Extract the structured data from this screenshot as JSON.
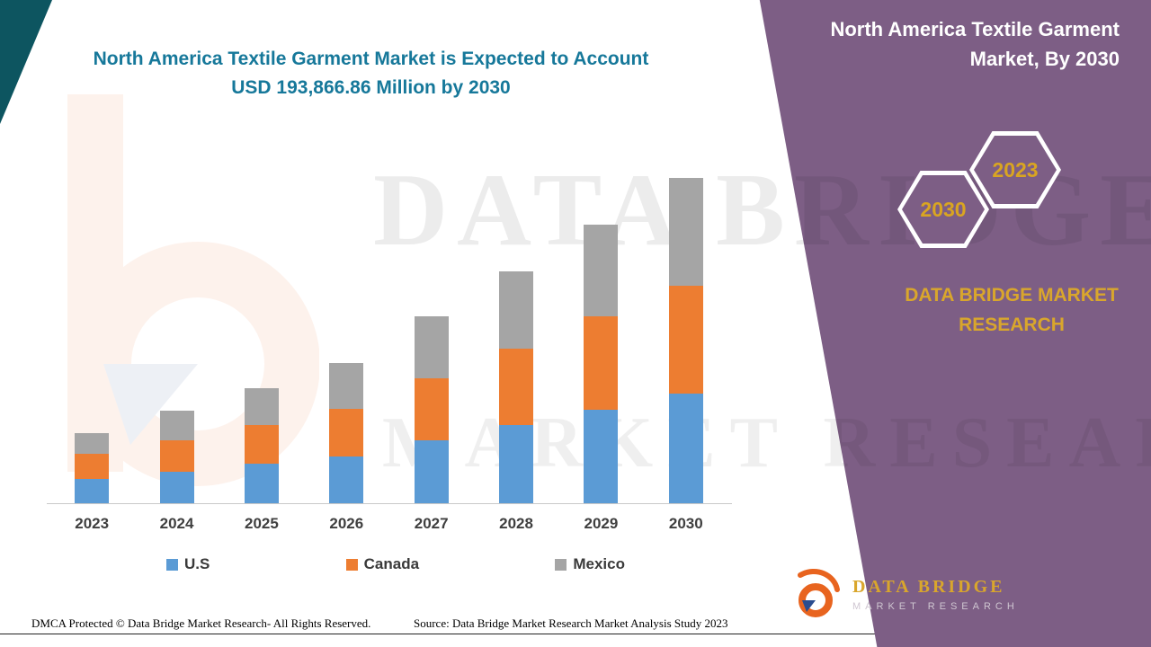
{
  "left_title": {
    "line1": "North America Textile Garment Market is Expected to Account",
    "line2": "USD 193,866.86 Million by 2030"
  },
  "panel": {
    "title_line1": "North America Textile Garment",
    "title_line2": "Market, By 2030",
    "hexagon_back_label": "2030",
    "hexagon_front_label": "2023",
    "brand_line1": "DATA BRIDGE MARKET",
    "brand_line2": "RESEARCH",
    "panel_color": "#7d5e85",
    "accent_gold": "#d9a62c"
  },
  "chart_data": {
    "type": "bar",
    "stacked": true,
    "title": "North America Textile Garment Market is Expected to Account USD 193,866.86 Million by 2030",
    "unit": "USD Million",
    "categories": [
      "2023",
      "2024",
      "2025",
      "2026",
      "2027",
      "2028",
      "2029",
      "2030"
    ],
    "series": [
      {
        "name": "U.S",
        "color": "#5b9bd5",
        "values": [
          14460,
          18740,
          23560,
          27850,
          37490,
          46590,
          55700,
          65340
        ]
      },
      {
        "name": "Canada",
        "color": "#ed7d31",
        "values": [
          15000,
          18740,
          23030,
          28380,
          36950,
          45520,
          55700,
          64260
        ]
      },
      {
        "name": "Mexico",
        "color": "#a5a5a5",
        "values": [
          12320,
          17670,
          21960,
          27310,
          36950,
          46060,
          54630,
          64266.86
        ]
      }
    ],
    "totals_note": "2030 total equals 193,866.86 USD Million",
    "xlabel": "",
    "ylabel": "",
    "ylim": [
      0,
      200000
    ],
    "grid": false,
    "legend_position": "bottom"
  },
  "watermark": {
    "line1": "DATA BRIDGE",
    "line2": "MARKET RESEARCH"
  },
  "footer": {
    "dmca": "DMCA Protected © Data Bridge Market Research- All Rights Reserved.",
    "source": "Source: Data Bridge Market Research Market Analysis Study 2023"
  },
  "logo": {
    "name": "DATA BRIDGE",
    "sub": "MARKET RESEARCH"
  }
}
